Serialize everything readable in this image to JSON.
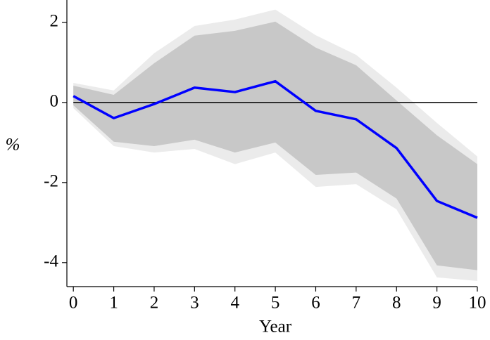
{
  "chart_data": {
    "type": "line",
    "x_label": "Year",
    "y_label": "%",
    "x": [
      0,
      1,
      2,
      3,
      4,
      5,
      6,
      7,
      8,
      9,
      10
    ],
    "series": [
      {
        "color": "#0000ff",
        "values": [
          0.16,
          -0.39,
          -0.04,
          0.37,
          0.26,
          0.53,
          -0.21,
          -0.42,
          -1.14,
          -2.46,
          -2.88
        ]
      }
    ],
    "bands": [
      {
        "color": "#ebebeb",
        "upper": [
          0.49,
          0.3,
          1.23,
          1.91,
          2.07,
          2.32,
          1.68,
          1.19,
          0.37,
          -0.51,
          -1.35
        ],
        "lower": [
          -0.14,
          -1.09,
          -1.25,
          -1.16,
          -1.54,
          -1.25,
          -2.11,
          -2.04,
          -2.67,
          -4.37,
          -4.46
        ]
      },
      {
        "color": "#c8c8c8",
        "upper": [
          0.42,
          0.19,
          0.98,
          1.67,
          1.79,
          2.02,
          1.37,
          0.93,
          0.05,
          -0.82,
          -1.54
        ],
        "lower": [
          -0.07,
          -0.98,
          -1.09,
          -0.93,
          -1.25,
          -1.0,
          -1.81,
          -1.75,
          -2.4,
          -4.07,
          -4.19
        ]
      }
    ],
    "hline": 0,
    "xlim": [
      -0.16,
      10
    ],
    "ylim": [
      -4.6,
      2.56
    ],
    "xticks": [
      0,
      1,
      2,
      3,
      4,
      5,
      6,
      7,
      8,
      9,
      10
    ],
    "yticks": [
      -4,
      -2,
      0,
      2
    ],
    "grid": false
  }
}
